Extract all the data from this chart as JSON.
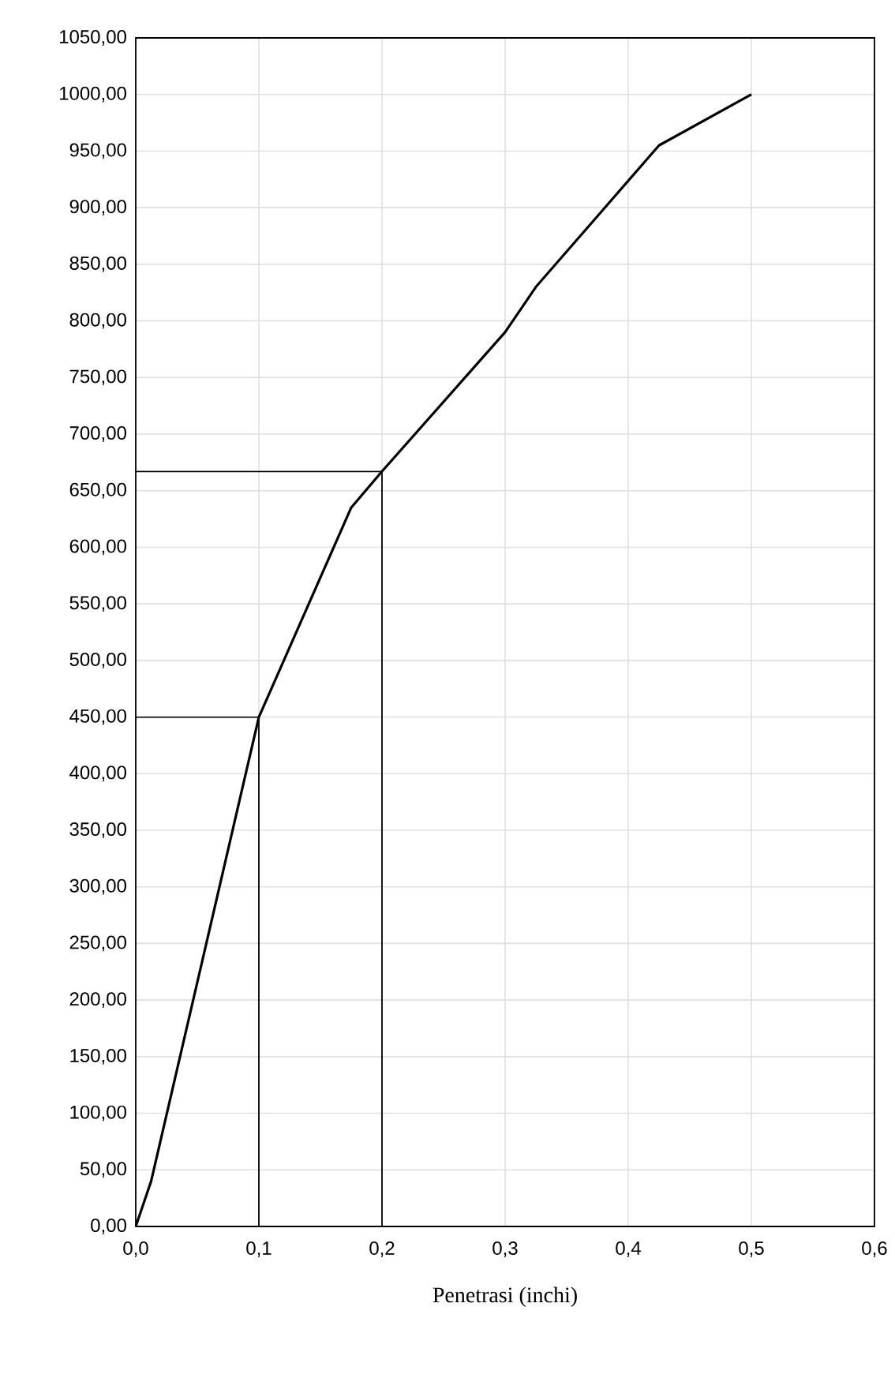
{
  "chart_data": {
    "type": "line",
    "xlabel": "Penetrasi (inchi)",
    "xlim": [
      0,
      0.6
    ],
    "ylim": [
      0,
      1050
    ],
    "xticks": [
      {
        "value": 0,
        "label": "0,0"
      },
      {
        "value": 0.1,
        "label": "0,1"
      },
      {
        "value": 0.2,
        "label": "0,2"
      },
      {
        "value": 0.3,
        "label": "0,3"
      },
      {
        "value": 0.4,
        "label": "0,4"
      },
      {
        "value": 0.5,
        "label": "0,5"
      },
      {
        "value": 0.6,
        "label": "0,6"
      }
    ],
    "yticks": [
      {
        "value": 0,
        "label": "0,00"
      },
      {
        "value": 50,
        "label": "50,00"
      },
      {
        "value": 100,
        "label": "100,00"
      },
      {
        "value": 150,
        "label": "150,00"
      },
      {
        "value": 200,
        "label": "200,00"
      },
      {
        "value": 250,
        "label": "250,00"
      },
      {
        "value": 300,
        "label": "300,00"
      },
      {
        "value": 350,
        "label": "350,00"
      },
      {
        "value": 400,
        "label": "400,00"
      },
      {
        "value": 450,
        "label": "450,00"
      },
      {
        "value": 500,
        "label": "500,00"
      },
      {
        "value": 550,
        "label": "550,00"
      },
      {
        "value": 600,
        "label": "600,00"
      },
      {
        "value": 650,
        "label": "650,00"
      },
      {
        "value": 700,
        "label": "700,00"
      },
      {
        "value": 750,
        "label": "750,00"
      },
      {
        "value": 800,
        "label": "800,00"
      },
      {
        "value": 850,
        "label": "850,00"
      },
      {
        "value": 900,
        "label": "900,00"
      },
      {
        "value": 950,
        "label": "950,00"
      },
      {
        "value": 1000,
        "label": "1000,00"
      },
      {
        "value": 1050,
        "label": "1050,00"
      }
    ],
    "grid": true,
    "marker": "none",
    "line_style": "solid",
    "series": [
      {
        "color": "#000000",
        "x": [
          0,
          0.0125,
          0.1,
          0.175,
          0.2,
          0.3,
          0.325,
          0.425,
          0.5
        ],
        "values": [
          0,
          40,
          450,
          635,
          667,
          790,
          830,
          955,
          1000
        ]
      },
      {
        "color": "#000000",
        "x": [
          0,
          0.1,
          0.1
        ],
        "values": [
          450,
          450,
          0
        ]
      },
      {
        "color": "#000000",
        "x": [
          0,
          0.2,
          0.2
        ],
        "values": [
          667,
          667,
          0
        ]
      }
    ]
  }
}
